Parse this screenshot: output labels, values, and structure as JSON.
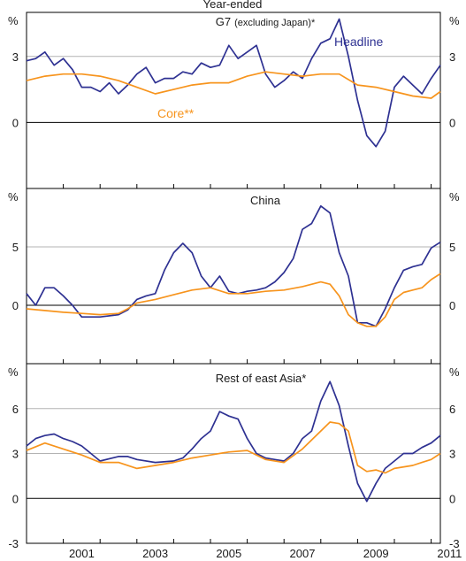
{
  "colors": {
    "headline": "#2e3192",
    "core": "#f7941d",
    "grid": "#b3b3b3",
    "frame": "#000000",
    "text": "#1a1a1a"
  },
  "header_text": "Year-ended",
  "unit_label": "%",
  "x_ticks": [
    "2001",
    "2003",
    "2005",
    "2007",
    "2009",
    "2011"
  ],
  "panel_titles": {
    "g7_main": "G7",
    "g7_paren": "(excluding Japan)*",
    "china": "China",
    "east_asia": "Rest of east Asia*"
  },
  "legend_labels": {
    "headline": "Headline",
    "core": "Core**"
  },
  "chart_data": [
    {
      "type": "line",
      "title": "G7 (excluding Japan)*",
      "ylabel": "%",
      "ylim": [
        -3,
        5
      ],
      "yticks": [
        "3",
        "0"
      ],
      "ytick_values": [
        3,
        0
      ],
      "xlim": [
        2000.0,
        2011.25
      ],
      "grid": true,
      "legend": "inline labels",
      "series": [
        {
          "name": "Headline",
          "points": [
            [
              2000.0,
              2.8
            ],
            [
              2000.25,
              2.9
            ],
            [
              2000.5,
              3.2
            ],
            [
              2000.75,
              2.6
            ],
            [
              2001.0,
              2.9
            ],
            [
              2001.25,
              2.4
            ],
            [
              2001.5,
              1.6
            ],
            [
              2001.75,
              1.6
            ],
            [
              2002.0,
              1.4
            ],
            [
              2002.25,
              1.8
            ],
            [
              2002.5,
              1.3
            ],
            [
              2002.75,
              1.7
            ],
            [
              2003.0,
              2.2
            ],
            [
              2003.25,
              2.5
            ],
            [
              2003.5,
              1.8
            ],
            [
              2003.75,
              2.0
            ],
            [
              2004.0,
              2.0
            ],
            [
              2004.25,
              2.3
            ],
            [
              2004.5,
              2.2
            ],
            [
              2004.75,
              2.7
            ],
            [
              2005.0,
              2.5
            ],
            [
              2005.25,
              2.6
            ],
            [
              2005.5,
              3.5
            ],
            [
              2005.75,
              2.9
            ],
            [
              2006.0,
              3.2
            ],
            [
              2006.25,
              3.5
            ],
            [
              2006.5,
              2.2
            ],
            [
              2006.75,
              1.6
            ],
            [
              2007.0,
              1.9
            ],
            [
              2007.25,
              2.3
            ],
            [
              2007.5,
              2.0
            ],
            [
              2007.75,
              2.9
            ],
            [
              2008.0,
              3.6
            ],
            [
              2008.25,
              3.8
            ],
            [
              2008.5,
              4.7
            ],
            [
              2008.75,
              3.0
            ],
            [
              2009.0,
              1.0
            ],
            [
              2009.25,
              -0.6
            ],
            [
              2009.5,
              -1.1
            ],
            [
              2009.75,
              -0.4
            ],
            [
              2010.0,
              1.6
            ],
            [
              2010.25,
              2.1
            ],
            [
              2010.5,
              1.7
            ],
            [
              2010.75,
              1.3
            ],
            [
              2011.0,
              2.0
            ],
            [
              2011.25,
              2.6
            ]
          ]
        },
        {
          "name": "Core**",
          "points": [
            [
              2000.0,
              1.9
            ],
            [
              2000.5,
              2.1
            ],
            [
              2001.0,
              2.2
            ],
            [
              2001.5,
              2.2
            ],
            [
              2002.0,
              2.1
            ],
            [
              2002.5,
              1.9
            ],
            [
              2003.0,
              1.6
            ],
            [
              2003.5,
              1.3
            ],
            [
              2004.0,
              1.5
            ],
            [
              2004.5,
              1.7
            ],
            [
              2005.0,
              1.8
            ],
            [
              2005.5,
              1.8
            ],
            [
              2006.0,
              2.1
            ],
            [
              2006.5,
              2.3
            ],
            [
              2007.0,
              2.2
            ],
            [
              2007.5,
              2.1
            ],
            [
              2008.0,
              2.2
            ],
            [
              2008.5,
              2.2
            ],
            [
              2009.0,
              1.7
            ],
            [
              2009.5,
              1.6
            ],
            [
              2010.0,
              1.4
            ],
            [
              2010.5,
              1.2
            ],
            [
              2011.0,
              1.1
            ],
            [
              2011.25,
              1.4
            ]
          ]
        }
      ]
    },
    {
      "type": "line",
      "title": "China",
      "ylabel": "%",
      "ylim": [
        -5,
        10
      ],
      "yticks": [
        "5",
        "0"
      ],
      "ytick_values": [
        5,
        0
      ],
      "xlim": [
        2000.0,
        2011.25
      ],
      "grid": true,
      "series": [
        {
          "name": "Headline",
          "points": [
            [
              2000.0,
              1.0
            ],
            [
              2000.25,
              0.0
            ],
            [
              2000.5,
              1.5
            ],
            [
              2000.75,
              1.5
            ],
            [
              2001.0,
              0.8
            ],
            [
              2001.25,
              0.0
            ],
            [
              2001.5,
              -1.0
            ],
            [
              2001.75,
              -1.0
            ],
            [
              2002.0,
              -1.0
            ],
            [
              2002.5,
              -0.8
            ],
            [
              2002.75,
              -0.4
            ],
            [
              2003.0,
              0.5
            ],
            [
              2003.25,
              0.8
            ],
            [
              2003.5,
              1.0
            ],
            [
              2003.75,
              3.0
            ],
            [
              2004.0,
              4.5
            ],
            [
              2004.25,
              5.3
            ],
            [
              2004.5,
              4.5
            ],
            [
              2004.75,
              2.5
            ],
            [
              2005.0,
              1.5
            ],
            [
              2005.25,
              2.5
            ],
            [
              2005.5,
              1.2
            ],
            [
              2005.75,
              1.0
            ],
            [
              2006.0,
              1.2
            ],
            [
              2006.25,
              1.3
            ],
            [
              2006.5,
              1.5
            ],
            [
              2006.75,
              2.0
            ],
            [
              2007.0,
              2.8
            ],
            [
              2007.25,
              4.0
            ],
            [
              2007.5,
              6.5
            ],
            [
              2007.75,
              7.0
            ],
            [
              2008.0,
              8.5
            ],
            [
              2008.25,
              7.9
            ],
            [
              2008.5,
              4.5
            ],
            [
              2008.75,
              2.5
            ],
            [
              2009.0,
              -1.5
            ],
            [
              2009.25,
              -1.5
            ],
            [
              2009.5,
              -1.8
            ],
            [
              2009.75,
              -0.3
            ],
            [
              2010.0,
              1.5
            ],
            [
              2010.25,
              3.0
            ],
            [
              2010.5,
              3.3
            ],
            [
              2010.75,
              3.5
            ],
            [
              2011.0,
              4.9
            ],
            [
              2011.25,
              5.4
            ]
          ]
        },
        {
          "name": "Core**",
          "points": [
            [
              2000.0,
              -0.3
            ],
            [
              2001.0,
              -0.6
            ],
            [
              2001.5,
              -0.7
            ],
            [
              2002.0,
              -0.8
            ],
            [
              2002.5,
              -0.7
            ],
            [
              2002.75,
              -0.3
            ],
            [
              2003.0,
              0.2
            ],
            [
              2003.5,
              0.5
            ],
            [
              2004.0,
              0.9
            ],
            [
              2004.5,
              1.3
            ],
            [
              2005.0,
              1.5
            ],
            [
              2005.5,
              1.0
            ],
            [
              2006.0,
              1.0
            ],
            [
              2006.5,
              1.2
            ],
            [
              2007.0,
              1.3
            ],
            [
              2007.5,
              1.6
            ],
            [
              2008.0,
              2.0
            ],
            [
              2008.25,
              1.8
            ],
            [
              2008.5,
              0.8
            ],
            [
              2008.75,
              -0.8
            ],
            [
              2009.0,
              -1.5
            ],
            [
              2009.25,
              -1.8
            ],
            [
              2009.5,
              -1.8
            ],
            [
              2009.75,
              -1.0
            ],
            [
              2010.0,
              0.5
            ],
            [
              2010.25,
              1.1
            ],
            [
              2010.5,
              1.3
            ],
            [
              2010.75,
              1.5
            ],
            [
              2011.0,
              2.2
            ],
            [
              2011.25,
              2.7
            ]
          ]
        }
      ]
    },
    {
      "type": "line",
      "title": "Rest of east Asia*",
      "ylabel": "%",
      "ylim": [
        -3,
        9
      ],
      "yticks": [
        "6",
        "3",
        "0",
        "-3"
      ],
      "ytick_values": [
        6,
        3,
        0,
        -3
      ],
      "xlim": [
        2000.0,
        2011.25
      ],
      "x_tick_labels": [
        "2001",
        "2003",
        "2005",
        "2007",
        "2009",
        "2011"
      ],
      "grid": true,
      "series": [
        {
          "name": "Headline",
          "points": [
            [
              2000.0,
              3.5
            ],
            [
              2000.25,
              4.0
            ],
            [
              2000.5,
              4.2
            ],
            [
              2000.75,
              4.3
            ],
            [
              2001.0,
              4.0
            ],
            [
              2001.25,
              3.8
            ],
            [
              2001.5,
              3.5
            ],
            [
              2001.75,
              3.0
            ],
            [
              2002.0,
              2.5
            ],
            [
              2002.5,
              2.8
            ],
            [
              2002.75,
              2.8
            ],
            [
              2003.0,
              2.6
            ],
            [
              2003.5,
              2.4
            ],
            [
              2004.0,
              2.5
            ],
            [
              2004.25,
              2.7
            ],
            [
              2004.5,
              3.3
            ],
            [
              2004.75,
              4.0
            ],
            [
              2005.0,
              4.5
            ],
            [
              2005.25,
              5.8
            ],
            [
              2005.5,
              5.5
            ],
            [
              2005.75,
              5.3
            ],
            [
              2006.0,
              4.0
            ],
            [
              2006.25,
              3.0
            ],
            [
              2006.5,
              2.7
            ],
            [
              2006.75,
              2.6
            ],
            [
              2007.0,
              2.5
            ],
            [
              2007.25,
              3.0
            ],
            [
              2007.5,
              4.0
            ],
            [
              2007.75,
              4.5
            ],
            [
              2008.0,
              6.5
            ],
            [
              2008.25,
              7.8
            ],
            [
              2008.5,
              6.2
            ],
            [
              2008.75,
              3.5
            ],
            [
              2009.0,
              1.0
            ],
            [
              2009.25,
              -0.2
            ],
            [
              2009.5,
              1.0
            ],
            [
              2009.75,
              2.0
            ],
            [
              2010.0,
              2.5
            ],
            [
              2010.25,
              3.0
            ],
            [
              2010.5,
              3.0
            ],
            [
              2010.75,
              3.4
            ],
            [
              2011.0,
              3.7
            ],
            [
              2011.25,
              4.2
            ]
          ]
        },
        {
          "name": "Core**",
          "points": [
            [
              2000.0,
              3.2
            ],
            [
              2000.5,
              3.7
            ],
            [
              2001.0,
              3.3
            ],
            [
              2001.5,
              2.9
            ],
            [
              2002.0,
              2.4
            ],
            [
              2002.5,
              2.4
            ],
            [
              2003.0,
              2.0
            ],
            [
              2003.5,
              2.2
            ],
            [
              2004.0,
              2.4
            ],
            [
              2004.5,
              2.7
            ],
            [
              2005.0,
              2.9
            ],
            [
              2005.5,
              3.1
            ],
            [
              2006.0,
              3.2
            ],
            [
              2006.5,
              2.6
            ],
            [
              2007.0,
              2.4
            ],
            [
              2007.5,
              3.3
            ],
            [
              2008.0,
              4.5
            ],
            [
              2008.25,
              5.1
            ],
            [
              2008.5,
              5.0
            ],
            [
              2008.75,
              4.5
            ],
            [
              2009.0,
              2.2
            ],
            [
              2009.25,
              1.8
            ],
            [
              2009.5,
              1.9
            ],
            [
              2009.75,
              1.7
            ],
            [
              2010.0,
              2.0
            ],
            [
              2010.5,
              2.2
            ],
            [
              2010.75,
              2.4
            ],
            [
              2011.0,
              2.6
            ],
            [
              2011.25,
              3.0
            ]
          ]
        }
      ]
    }
  ]
}
